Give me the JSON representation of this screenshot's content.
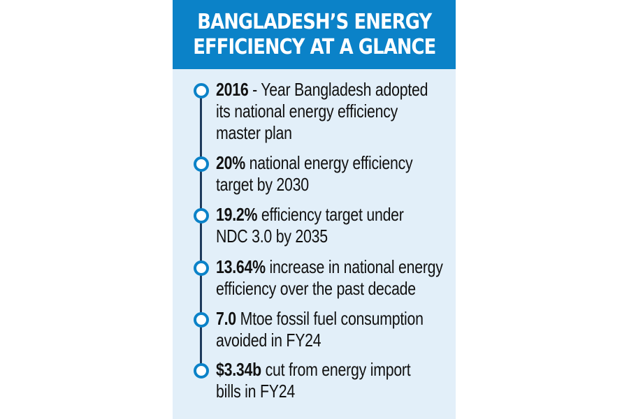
{
  "header": {
    "title_line1": "BANGLADESH’S ENERGY",
    "title_line2": "EFFICIENCY AT A GLANCE"
  },
  "items": [
    {
      "value": "2016",
      "lines": [
        "- Year Bangladesh adopted",
        "its national energy efficiency",
        "master plan"
      ]
    },
    {
      "value": "20%",
      "lines": [
        "national energy efficiency",
        "target by 2030"
      ]
    },
    {
      "value": "19.2%",
      "lines": [
        "efficiency target under",
        "NDC 3.0 by 2035"
      ]
    },
    {
      "value": "13.64%",
      "lines": [
        "increase in national energy",
        "efficiency over the past decade"
      ]
    },
    {
      "value": "7.0",
      "lines": [
        "Mtoe fossil fuel consumption",
        "avoided in FY24"
      ]
    },
    {
      "value": "$3.34b",
      "lines": [
        "cut from energy import",
        "bills in FY24"
      ]
    }
  ],
  "colors": {
    "header_bg": "#0b82c8",
    "card_bg": "#e2eff9",
    "timeline_line": "#1d3a5c",
    "dot_ring": "#0b82c8"
  }
}
